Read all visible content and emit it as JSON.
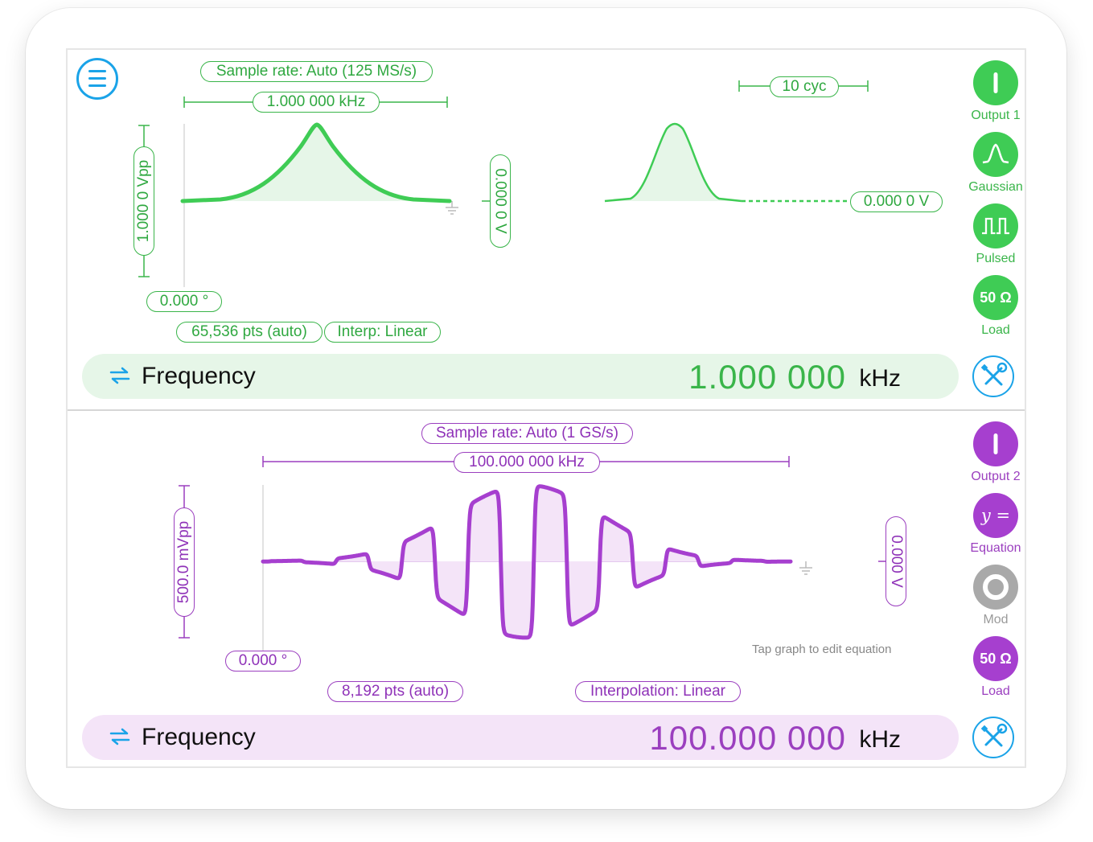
{
  "channel1": {
    "sample_rate": "Sample rate: Auto (125 MS/s)",
    "period": "1.000 000 kHz",
    "amplitude": "1.000 0 Vpp",
    "offset": "0.000 0 V",
    "phase": "0.000 °",
    "points": "65,536 pts (auto)",
    "interp": "Interp: Linear",
    "burst_cycles": "10 cyc",
    "idle_level": "0.000 0 V",
    "buttons": [
      {
        "label": "Output 1",
        "icon": "power-icon"
      },
      {
        "label": "Gaussian",
        "icon": "gaussian-wave-icon"
      },
      {
        "label": "Pulsed",
        "icon": "pulse-train-icon"
      },
      {
        "label": "Load",
        "icon": "load-icon",
        "text": "50 Ω"
      }
    ],
    "param_label": "Frequency",
    "param_value": "1.000 000",
    "param_unit": "kHz",
    "color": "#3ab54a"
  },
  "channel2": {
    "sample_rate": "Sample rate: Auto (1 GS/s)",
    "period": "100.000 000 kHz",
    "amplitude": "500.0 mVpp",
    "offset": "0.000 V",
    "phase": "0.000 °",
    "points": "8,192 pts (auto)",
    "interp": "Interpolation: Linear",
    "hint": "Tap graph to edit equation",
    "buttons": [
      {
        "label": "Output 2",
        "icon": "power-icon"
      },
      {
        "label": "Equation",
        "icon": "equation-icon",
        "text": "y ="
      },
      {
        "label": "Mod",
        "icon": "modulation-icon"
      },
      {
        "label": "Load",
        "icon": "load-icon",
        "text": "50 Ω"
      }
    ],
    "param_label": "Frequency",
    "param_value": "100.000 000",
    "param_unit": "kHz",
    "color": "#9b3fbf"
  }
}
